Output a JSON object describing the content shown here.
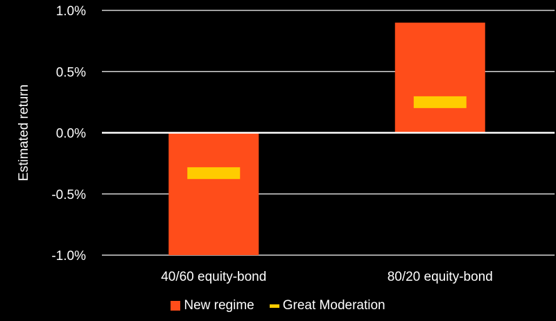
{
  "chart_data": {
    "type": "bar",
    "ylabel": "Estimated return",
    "ylim": [
      -1.0,
      1.0
    ],
    "yticks": [
      1.0,
      0.5,
      0.0,
      -0.5,
      -1.0
    ],
    "ytick_labels": [
      "1.0%",
      "0.5%",
      "0.0%",
      "-0.5%",
      "-1.0%"
    ],
    "categories": [
      "40/60 equity-bond",
      "80/20 equity-bond"
    ],
    "series": [
      {
        "name": "New regime",
        "type": "floating-bar",
        "color": "#FF4D1A",
        "ranges": [
          [
            -1.0,
            0.0
          ],
          [
            0.0,
            0.9
          ]
        ]
      },
      {
        "name": "Great Moderation",
        "type": "marker",
        "color": "#FFCC00",
        "values": [
          -0.33,
          0.25
        ]
      }
    ],
    "grid": true,
    "legend": "bottom-center"
  }
}
